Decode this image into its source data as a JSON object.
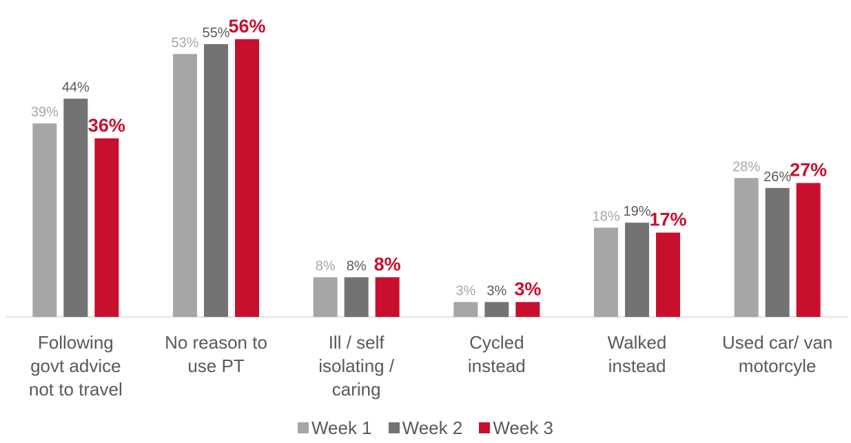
{
  "chart_data": {
    "type": "bar",
    "categories": [
      "Following\ngovt advice\nnot to travel",
      "No reason to\nuse PT",
      "Ill / self\nisolating /\ncaring",
      "Cycled\ninstead",
      "Walked\ninstead",
      "Used car/ van\nmotorcyle"
    ],
    "series": [
      {
        "name": "Week 1",
        "color": "#a6a6a6",
        "values": [
          39,
          53,
          8,
          3,
          18,
          28
        ],
        "value_labels": [
          "39%",
          "53%",
          "8%",
          "3%",
          "18%",
          "28%"
        ]
      },
      {
        "name": "Week 2",
        "color": "#737373",
        "values": [
          44,
          55,
          8,
          3,
          19,
          26
        ],
        "value_labels": [
          "44%",
          "55%",
          "8%",
          "3%",
          "19%",
          "26%"
        ]
      },
      {
        "name": "Week 3",
        "color": "#c8102e",
        "values": [
          36,
          56,
          8,
          3,
          17,
          27
        ],
        "value_labels": [
          "36%",
          "56%",
          "8%",
          "3%",
          "17%",
          "27%"
        ]
      }
    ],
    "legend": "bottom"
  }
}
